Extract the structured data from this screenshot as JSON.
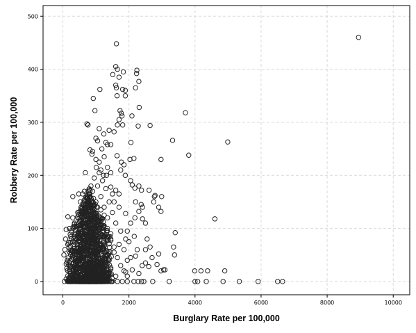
{
  "chart_data": {
    "type": "scatter",
    "xlabel": "Burglary Rate per 100,000",
    "ylabel": "Robbery Rate per 100,000",
    "xlim": [
      -600,
      10500
    ],
    "ylim": [
      -25,
      520
    ],
    "xticks": [
      0,
      2000,
      4000,
      6000,
      8000,
      10000
    ],
    "yticks": [
      0,
      100,
      200,
      300,
      400,
      500
    ],
    "grid": true,
    "marker": "open-circle",
    "points": [
      [
        8950,
        460
      ],
      [
        1620,
        448
      ],
      [
        1600,
        405
      ],
      [
        1650,
        400
      ],
      [
        2240,
        398
      ],
      [
        1830,
        395
      ],
      [
        2230,
        392
      ],
      [
        1510,
        390
      ],
      [
        1700,
        385
      ],
      [
        2300,
        377
      ],
      [
        1600,
        370
      ],
      [
        1620,
        365
      ],
      [
        1810,
        362
      ],
      [
        2200,
        365
      ],
      [
        1890,
        360
      ],
      [
        1120,
        362
      ],
      [
        1640,
        350
      ],
      [
        1890,
        350
      ],
      [
        920,
        345
      ],
      [
        1100,
        288
      ],
      [
        2310,
        328
      ],
      [
        1730,
        322
      ],
      [
        1770,
        317
      ],
      [
        970,
        322
      ],
      [
        3710,
        318
      ],
      [
        1790,
        312
      ],
      [
        2090,
        312
      ],
      [
        1700,
        305
      ],
      [
        1810,
        295
      ],
      [
        1650,
        295
      ],
      [
        2280,
        293
      ],
      [
        2640,
        294
      ],
      [
        3320,
        266
      ],
      [
        4990,
        263
      ],
      [
        3810,
        238
      ],
      [
        730,
        297
      ],
      [
        760,
        295
      ],
      [
        1400,
        285
      ],
      [
        1550,
        282
      ],
      [
        1240,
        278
      ],
      [
        1000,
        270
      ],
      [
        1050,
        265
      ],
      [
        1300,
        262
      ],
      [
        1350,
        258
      ],
      [
        1450,
        258
      ],
      [
        2060,
        262
      ],
      [
        1180,
        250
      ],
      [
        820,
        248
      ],
      [
        900,
        245
      ],
      [
        880,
        240
      ],
      [
        1640,
        237
      ],
      [
        1770,
        225
      ],
      [
        1850,
        220
      ],
      [
        2030,
        230
      ],
      [
        2150,
        232
      ],
      [
        2970,
        230
      ],
      [
        1250,
        235
      ],
      [
        1010,
        215
      ],
      [
        1150,
        210
      ],
      [
        1100,
        205
      ],
      [
        1230,
        200
      ],
      [
        1320,
        200
      ],
      [
        680,
        205
      ],
      [
        1750,
        210
      ],
      [
        1890,
        200
      ],
      [
        2050,
        190
      ],
      [
        2100,
        182
      ],
      [
        2180,
        176
      ],
      [
        2300,
        180
      ],
      [
        2380,
        172
      ],
      [
        2610,
        172
      ],
      [
        2770,
        160
      ],
      [
        2750,
        150
      ],
      [
        2790,
        162
      ],
      [
        2990,
        160
      ],
      [
        2900,
        140
      ],
      [
        2970,
        132
      ],
      [
        1450,
        178
      ],
      [
        1600,
        172
      ],
      [
        1500,
        165
      ],
      [
        1700,
        165
      ],
      [
        480,
        165
      ],
      [
        600,
        165
      ],
      [
        300,
        160
      ],
      [
        650,
        170
      ],
      [
        530,
        150
      ],
      [
        300,
        120
      ],
      [
        150,
        122
      ],
      [
        2370,
        145
      ],
      [
        2200,
        150
      ],
      [
        2410,
        140
      ],
      [
        2300,
        132
      ],
      [
        2180,
        120
      ],
      [
        2410,
        118
      ],
      [
        1900,
        128
      ],
      [
        2500,
        110
      ],
      [
        3400,
        92
      ],
      [
        4600,
        118
      ],
      [
        3350,
        65
      ],
      [
        2640,
        65
      ],
      [
        2900,
        52
      ],
      [
        3380,
        50
      ],
      [
        2500,
        60
      ],
      [
        2700,
        45
      ],
      [
        2970,
        20
      ],
      [
        3090,
        22
      ],
      [
        2500,
        35
      ],
      [
        1950,
        40
      ],
      [
        2400,
        30
      ],
      [
        2200,
        48
      ],
      [
        2160,
        85
      ],
      [
        1950,
        95
      ],
      [
        2050,
        110
      ],
      [
        100,
        98
      ],
      [
        80,
        80
      ],
      [
        250,
        80
      ],
      [
        200,
        100
      ],
      [
        60,
        60
      ],
      [
        150,
        70
      ],
      [
        30,
        50
      ],
      [
        3990,
        20
      ],
      [
        4180,
        20
      ],
      [
        4380,
        20
      ],
      [
        4900,
        20
      ],
      [
        3220,
        0
      ],
      [
        4000,
        0
      ],
      [
        4080,
        0
      ],
      [
        4340,
        0
      ],
      [
        4850,
        0
      ],
      [
        5340,
        0
      ],
      [
        5910,
        0
      ],
      [
        6500,
        0
      ],
      [
        6650,
        0
      ],
      [
        2720,
        0
      ],
      [
        2450,
        0
      ],
      [
        2380,
        0
      ],
      [
        2280,
        0
      ],
      [
        2150,
        0
      ],
      [
        1950,
        0
      ],
      [
        1800,
        0
      ],
      [
        1650,
        0
      ],
      [
        1500,
        0
      ],
      [
        1350,
        0
      ],
      [
        1200,
        0
      ],
      [
        1050,
        0
      ],
      [
        900,
        0
      ],
      [
        750,
        0
      ],
      [
        600,
        0
      ],
      [
        450,
        0
      ],
      [
        300,
        0
      ],
      [
        150,
        0
      ],
      [
        50,
        0
      ],
      [
        100,
        5
      ],
      [
        200,
        8
      ],
      [
        350,
        6
      ],
      [
        500,
        10
      ],
      [
        700,
        8
      ],
      [
        900,
        12
      ],
      [
        1100,
        9
      ],
      [
        1300,
        14
      ],
      [
        1600,
        10
      ],
      [
        1900,
        18
      ],
      [
        2100,
        22
      ],
      [
        2300,
        15
      ],
      [
        1400,
        40
      ],
      [
        1550,
        55
      ],
      [
        1700,
        70
      ],
      [
        1850,
        60
      ],
      [
        2000,
        75
      ],
      [
        1450,
        90
      ],
      [
        1350,
        120
      ],
      [
        1250,
        140
      ],
      [
        1400,
        150
      ],
      [
        1150,
        160
      ],
      [
        1300,
        175
      ],
      [
        1050,
        180
      ],
      [
        1200,
        190
      ],
      [
        1500,
        130
      ],
      [
        1600,
        110
      ],
      [
        1750,
        95
      ],
      [
        1900,
        80
      ],
      [
        1700,
        140
      ],
      [
        1550,
        150
      ],
      [
        1000,
        150
      ],
      [
        800,
        140
      ],
      [
        700,
        125
      ],
      [
        600,
        110
      ],
      [
        900,
        170
      ],
      [
        1100,
        120
      ],
      [
        1250,
        105
      ],
      [
        400,
        90
      ],
      [
        500,
        100
      ],
      [
        350,
        110
      ],
      [
        250,
        95
      ],
      [
        450,
        130
      ],
      [
        550,
        140
      ],
      [
        650,
        150
      ],
      [
        750,
        160
      ],
      [
        850,
        180
      ],
      [
        950,
        195
      ],
      [
        1050,
        140
      ],
      [
        1150,
        135
      ],
      [
        1250,
        125
      ],
      [
        1350,
        100
      ],
      [
        1450,
        80
      ],
      [
        1550,
        65
      ],
      [
        1650,
        45
      ],
      [
        1750,
        30
      ],
      [
        1850,
        20
      ],
      [
        1950,
        10
      ],
      [
        3050,
        22
      ],
      [
        2850,
        32
      ],
      [
        2600,
        28
      ],
      [
        2550,
        80
      ],
      [
        2250,
        60
      ],
      [
        2050,
        45
      ],
      [
        1000,
        230
      ],
      [
        1100,
        225
      ],
      [
        1350,
        215
      ],
      [
        1450,
        205
      ]
    ],
    "cluster": {
      "x_center": 800,
      "x_spread": 520,
      "y_center": 35,
      "y_spread": 55,
      "count": 1400,
      "seed": 7
    }
  }
}
